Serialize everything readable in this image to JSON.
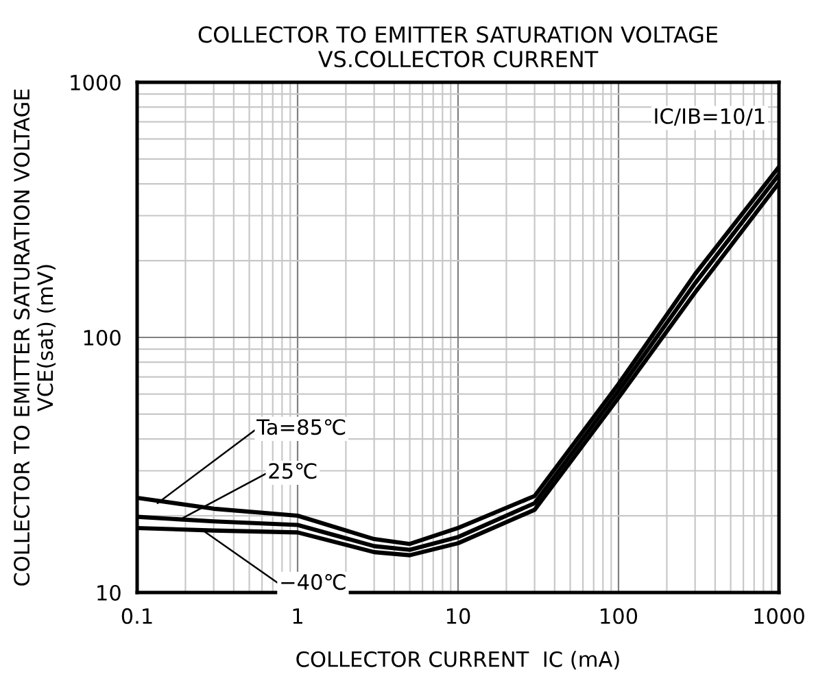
{
  "chart_data": {
    "type": "line",
    "title": "COLLECTOR TO EMITTER SATURATION VOLTAGE\nVS.COLLECTOR CURRENT",
    "xlabel": "COLLECTOR CURRENT  IC (mA)",
    "ylabel": "COLLECTOR TO EMITTER SATURATION VOLTAGE\nVCE(sat) (mV)",
    "log": "xy",
    "grid": true,
    "xlim": [
      0.1,
      1000
    ],
    "ylim": [
      10,
      1000
    ],
    "xticks": [
      0.1,
      1,
      10,
      100,
      1000
    ],
    "yticks": [
      10,
      100,
      1000
    ],
    "x": [
      0.1,
      0.3,
      1,
      3,
      5,
      10,
      30,
      100,
      300,
      1000
    ],
    "series": [
      {
        "color": "#000000",
        "values": [
          23.5,
          21.3,
          20,
          16.2,
          15.5,
          17.9,
          23.9,
          65.6,
          177,
          466
        ]
      },
      {
        "color": "#000000",
        "values": [
          19.8,
          19,
          18.4,
          15.2,
          14.7,
          16.5,
          22.4,
          61.7,
          163,
          435
        ]
      },
      {
        "color": "#000000",
        "values": [
          17.9,
          17.5,
          17.2,
          14.4,
          14.0,
          15.6,
          21.1,
          58,
          150,
          404
        ]
      }
    ],
    "annotations": [
      {
        "text": "Ta=85℃",
        "x": 0.134,
        "y": 22.4
      },
      {
        "text": "25℃",
        "x": 0.19,
        "y": 19.5
      },
      {
        "text": "−40℃",
        "x": 0.257,
        "y": 17.5
      },
      "IC/IB=10/1"
    ]
  }
}
